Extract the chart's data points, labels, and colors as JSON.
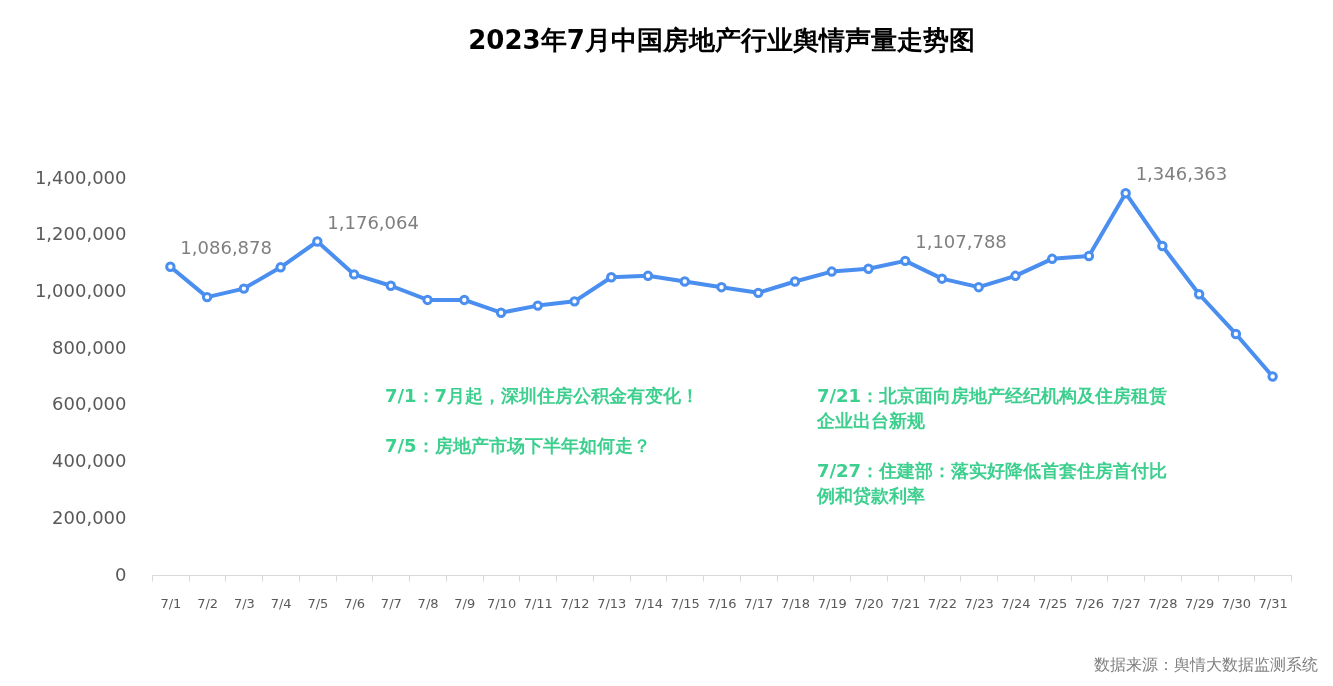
{
  "chart_data": {
    "type": "line",
    "title": "2023年7月中国房地产行业舆情声量走势图",
    "categories": [
      "7/1",
      "7/2",
      "7/3",
      "7/4",
      "7/5",
      "7/6",
      "7/7",
      "7/8",
      "7/9",
      "7/10",
      "7/11",
      "7/12",
      "7/13",
      "7/14",
      "7/15",
      "7/16",
      "7/17",
      "7/18",
      "7/19",
      "7/20",
      "7/21",
      "7/22",
      "7/23",
      "7/24",
      "7/25",
      "7/26",
      "7/27",
      "7/28",
      "7/29",
      "7/30",
      "7/31"
    ],
    "series": [
      {
        "color": "#4a8ef0",
        "values": [
          1086878,
          980000,
          1010000,
          1085000,
          1176064,
          1060000,
          1020000,
          970000,
          970000,
          925000,
          950000,
          965000,
          1050000,
          1055000,
          1035000,
          1015000,
          995000,
          1035000,
          1070000,
          1080000,
          1107788,
          1045000,
          1015000,
          1055000,
          1115000,
          1125000,
          1346363,
          1160000,
          990000,
          850000,
          700000
        ],
        "value_labels": [
          "1,086,878",
          null,
          null,
          null,
          "1,176,064",
          null,
          null,
          null,
          null,
          null,
          null,
          null,
          null,
          null,
          null,
          null,
          null,
          null,
          null,
          null,
          "1,107,788",
          null,
          null,
          null,
          null,
          null,
          "1,346,363",
          null,
          null,
          null,
          null
        ]
      }
    ],
    "ylim": [
      0,
      1400000
    ],
    "yticks": [
      0,
      {
        "value": 200000,
        "label": "200,000"
      },
      {
        "value": 400000,
        "label": "400,000"
      },
      {
        "value": 600000,
        "label": "600,000"
      },
      {
        "value": 800000,
        "label": "800,000"
      },
      {
        "value": 1000000,
        "label": "1,000,000"
      },
      {
        "value": 1200000,
        "label": "1,200,000"
      },
      {
        "value": 1400000,
        "label": "1,400,000"
      }
    ],
    "grid": false,
    "marker": "circle",
    "line_style": "solid",
    "annotations": [
      "7/1：7月起，深圳住房公积金有变化！",
      "7/5：房地产市场下半年如何走？",
      "7/21：北京面向房地产经纪机构及住房租赁企业出台新规",
      "7/27：住建部：落实好降低首套住房首付比例和贷款利率",
      "数据来源：舆情大数据监测系统"
    ]
  }
}
